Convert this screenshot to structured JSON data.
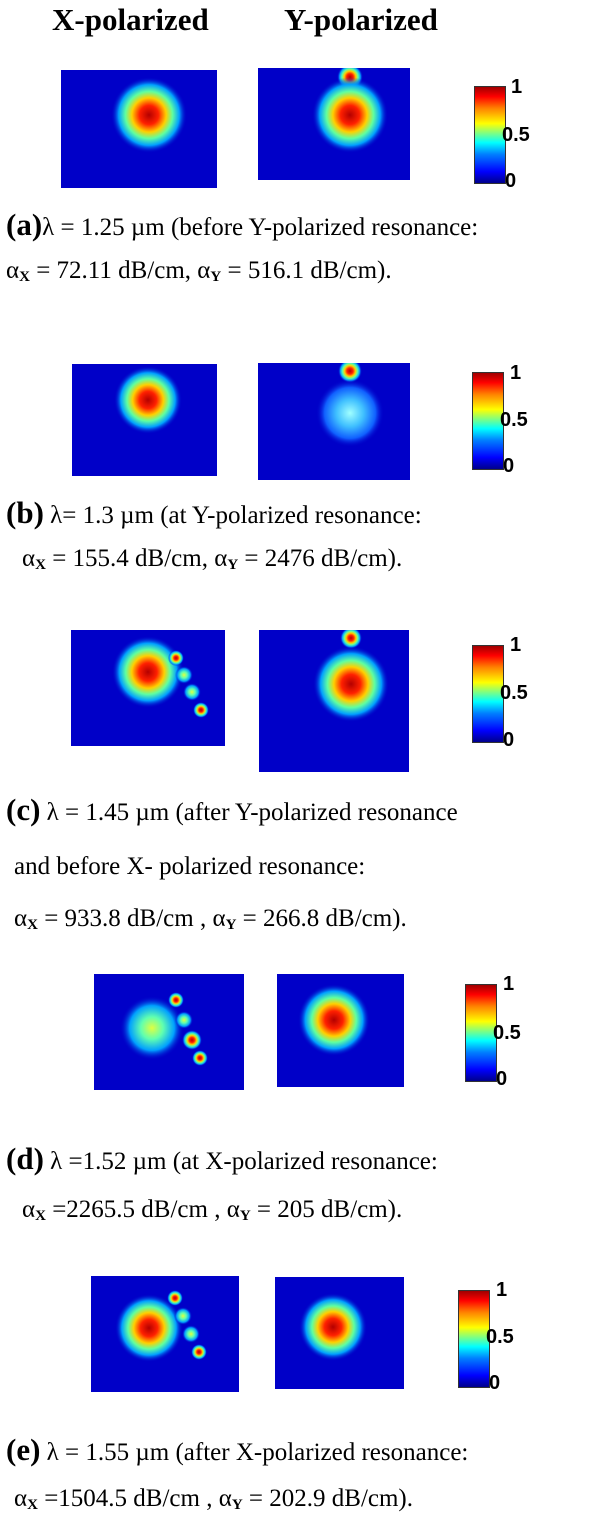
{
  "headers": {
    "x": "X-polarized",
    "y": "Y-polarized"
  },
  "colorbar": {
    "max": "1",
    "mid": "0.5",
    "min": "0"
  },
  "panels": [
    {
      "label": "(a)",
      "line1": "λ = 1.25 µm (before Y-polarized resonance:",
      "ax_pre": "α",
      "ax_sub": "X",
      "ax_val": " = 72.11 dB/cm, ",
      "ay_pre": "α",
      "ay_sub": "Y",
      "ay_val": " = 516.1  dB/cm)."
    },
    {
      "label": "(b)",
      "line1": " λ= 1.3 µm (at Y-polarized resonance:",
      "ax_pre": "α",
      "ax_sub": "X",
      "ax_val": " = 155.4 dB/cm, ",
      "ay_pre": "α",
      "ay_sub": "Y",
      "ay_val": " = 2476 dB/cm)."
    },
    {
      "label": "(c)",
      "line1": " λ = 1.45 µm (after Y-polarized resonance",
      "line2": "and before X- polarized resonance:",
      "ax_pre": "α",
      "ax_sub": "X",
      "ax_val": " = 933.8  dB/cm , ",
      "ay_pre": "α",
      "ay_sub": "Y",
      "ay_val": " =  266.8  dB/cm)."
    },
    {
      "label": "(d)",
      "line1": " λ =1.52 µm (at X-polarized  resonance:",
      "ax_pre": "α",
      "ax_sub": "X",
      "ax_val": " =2265.5  dB/cm , ",
      "ay_pre": "α",
      "ay_sub": "Y",
      "ay_val": " = 205  dB/cm)."
    },
    {
      "label": "(e)",
      "line1": " λ = 1.55 µm (after X-polarized resonance:",
      "ax_pre": "α",
      "ax_sub": "X",
      "ax_val": " =1504.5 dB/cm , ",
      "ay_pre": "α",
      "ay_sub": "Y",
      "ay_val": "  = 202.9 dB/cm)."
    }
  ]
}
